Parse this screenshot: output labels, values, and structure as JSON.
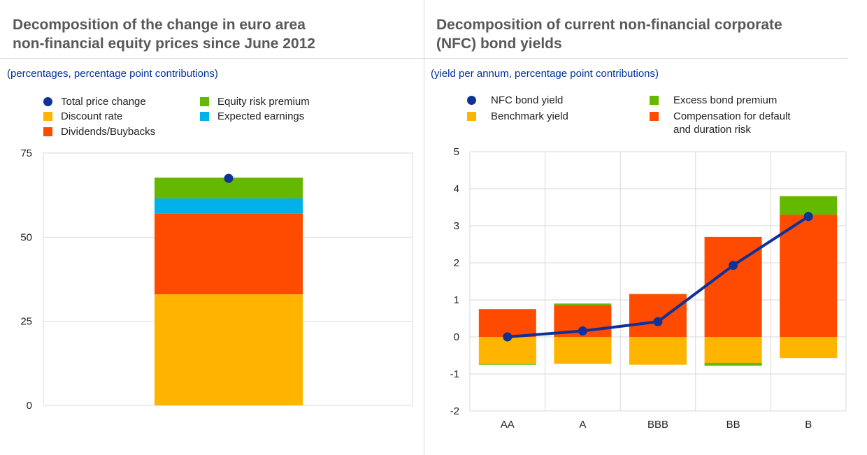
{
  "left_panel": {
    "title_line1": "Decomposition of the change in euro area",
    "title_line2": "non-financial equity prices since June 2012",
    "subtitle": "(percentages, percentage point contributions)"
  },
  "right_panel": {
    "title_line1": "Decomposition of current non-financial corporate",
    "title_line2": "(NFC) bond yields",
    "subtitle": "(yield per annum, percentage point contributions)"
  },
  "colors": {
    "navy": "#0d3399",
    "yellow": "#ffb400",
    "orange": "#ff4b00",
    "green": "#65b800",
    "blue": "#00b1ea",
    "grid": "#d9d9d9"
  },
  "chart_data": [
    {
      "type": "bar",
      "stacked": true,
      "title": "Decomposition of the change in euro area non-financial equity prices since June 2012",
      "unit_label": "(percentages, percentage point contributions)",
      "ylim": [
        0,
        75
      ],
      "yticks": [
        "0",
        "25",
        "50",
        "75"
      ],
      "ytick_values": [
        0,
        25,
        50,
        75
      ],
      "categories": [
        ""
      ],
      "legend": [
        {
          "name": "Total price change",
          "color": "#0d3399",
          "marker": "dot"
        },
        {
          "name": "Equity risk premium",
          "color": "#65b800",
          "marker": "square"
        },
        {
          "name": "Discount rate",
          "color": "#ffb400",
          "marker": "square"
        },
        {
          "name": "Expected earnings",
          "color": "#00b1ea",
          "marker": "square"
        },
        {
          "name": "Dividends/Buybacks",
          "color": "#ff4b00",
          "marker": "square"
        }
      ],
      "series": [
        {
          "name": "Discount rate",
          "color": "#ffb400",
          "values": [
            33.0
          ]
        },
        {
          "name": "Dividends/Buybacks",
          "color": "#ff4b00",
          "values": [
            24.0
          ]
        },
        {
          "name": "Expected earnings",
          "color": "#00b1ea",
          "values": [
            4.5
          ]
        },
        {
          "name": "Equity risk premium",
          "color": "#65b800",
          "values": [
            6.2
          ]
        }
      ],
      "total": {
        "name": "Total price change",
        "color": "#0d3399",
        "values": [
          67.5
        ]
      }
    },
    {
      "type": "bar",
      "stacked": true,
      "title": "Decomposition of current non-financial corporate (NFC) bond yields",
      "unit_label": "(yield per annum, percentage point contributions)",
      "ylim": [
        -2,
        5
      ],
      "yticks": [
        "-2",
        "-1",
        "0",
        "1",
        "2",
        "3",
        "4",
        "5"
      ],
      "ytick_values": [
        -2,
        -1,
        0,
        1,
        2,
        3,
        4,
        5
      ],
      "categories": [
        "AA",
        "A",
        "BBB",
        "BB",
        "B"
      ],
      "legend": [
        {
          "name": "NFC bond yield",
          "color": "#0d3399",
          "marker": "dot"
        },
        {
          "name": "Excess bond premium",
          "color": "#65b800",
          "marker": "square"
        },
        {
          "name": "Benchmark yield",
          "color": "#ffb400",
          "marker": "square"
        },
        {
          "name": "Compensation for default",
          "name_line2": "and duration risk",
          "color": "#ff4b00",
          "marker": "square"
        }
      ],
      "series": [
        {
          "name": "Benchmark yield",
          "color": "#ffb400",
          "values": [
            -0.73,
            -0.73,
            -0.75,
            -0.7,
            -0.57
          ]
        },
        {
          "name": "Compensation for default and duration risk",
          "color": "#ff4b00",
          "values": [
            0.75,
            0.85,
            1.15,
            2.7,
            3.3
          ]
        },
        {
          "name": "Excess bond premium",
          "color": "#65b800",
          "values": [
            -0.02,
            0.05,
            0.01,
            -0.08,
            0.5
          ]
        }
      ],
      "line": {
        "name": "NFC bond yield",
        "color": "#0d3399",
        "values": [
          0.0,
          0.16,
          0.41,
          1.93,
          3.25
        ]
      }
    }
  ]
}
